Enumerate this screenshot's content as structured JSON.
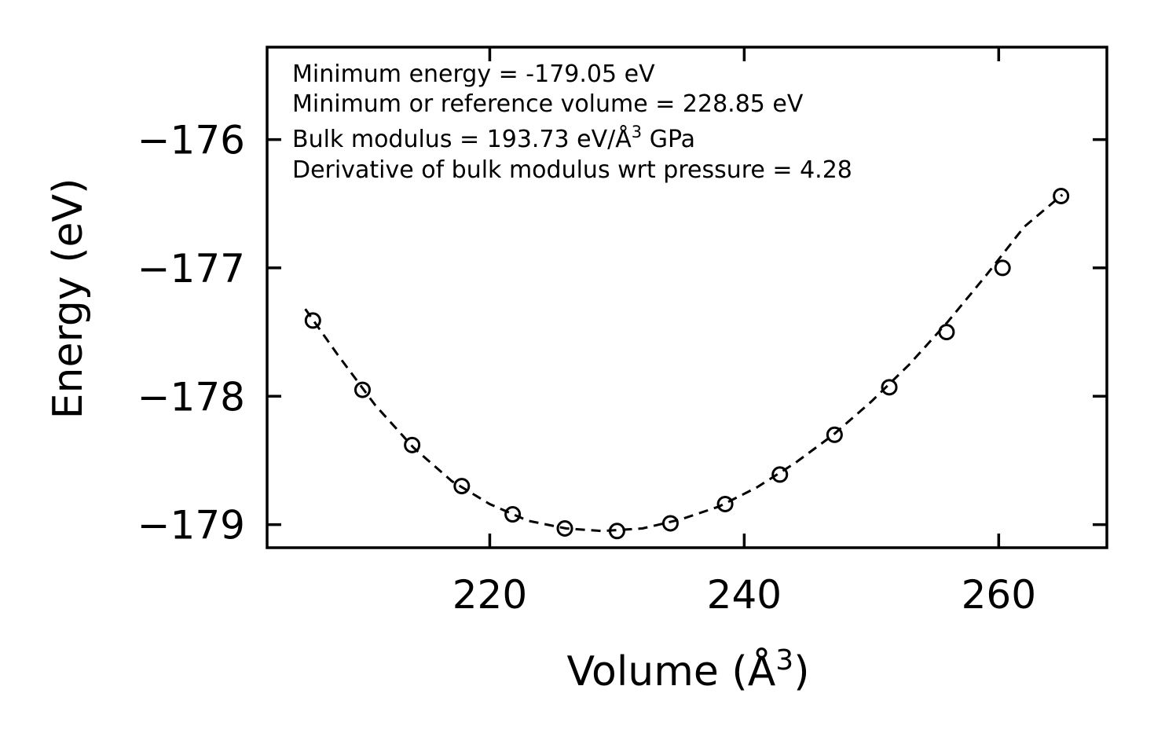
{
  "chart_data": {
    "type": "scatter",
    "xlabel": "Volume (Å",
    "xlabel_superscript": "3",
    "xlabel_suffix": ")",
    "ylabel": "Energy (eV)",
    "xlim": [
      202.5,
      268.5
    ],
    "ylim": [
      -179.18,
      -175.28
    ],
    "xticks": [
      220,
      240,
      260
    ],
    "xtick_labels": [
      "220",
      "240",
      "260"
    ],
    "yticks": [
      -176,
      -177,
      -178,
      -179
    ],
    "ytick_labels": [
      "−176",
      "−177",
      "−178",
      "−179"
    ],
    "series": [
      {
        "name": "data",
        "marker": "open-circle",
        "x": [
          206.1,
          210.0,
          213.9,
          217.8,
          221.8,
          225.9,
          230.0,
          234.2,
          238.5,
          242.8,
          247.1,
          251.4,
          255.9,
          260.3,
          264.9
        ],
        "y": [
          -177.41,
          -177.95,
          -178.38,
          -178.7,
          -178.92,
          -179.03,
          -179.05,
          -178.99,
          -178.84,
          -178.61,
          -178.3,
          -177.93,
          -177.5,
          -177.0,
          -176.44
        ]
      },
      {
        "name": "fit",
        "style": "dashed",
        "x": [
          205.5,
          208,
          211,
          214,
          217,
          220,
          223,
          226,
          228.85,
          232,
          235,
          238,
          241,
          244,
          247,
          250,
          253,
          256,
          259,
          262,
          265
        ],
        "y": [
          -177.32,
          -177.67,
          -178.07,
          -178.4,
          -178.66,
          -178.84,
          -178.97,
          -179.03,
          -179.05,
          -179.03,
          -178.96,
          -178.86,
          -178.71,
          -178.52,
          -178.3,
          -178.04,
          -177.75,
          -177.42,
          -177.06,
          -176.68,
          -176.43
        ]
      }
    ],
    "annotations": [
      "Minimum energy = -179.05 eV",
      "Minimum or reference volume = 228.85 eV",
      "Bulk modulus = 193.73 eV/Å",
      "3",
      " GPa",
      "Derivative of bulk modulus wrt pressure = 4.28"
    ]
  }
}
